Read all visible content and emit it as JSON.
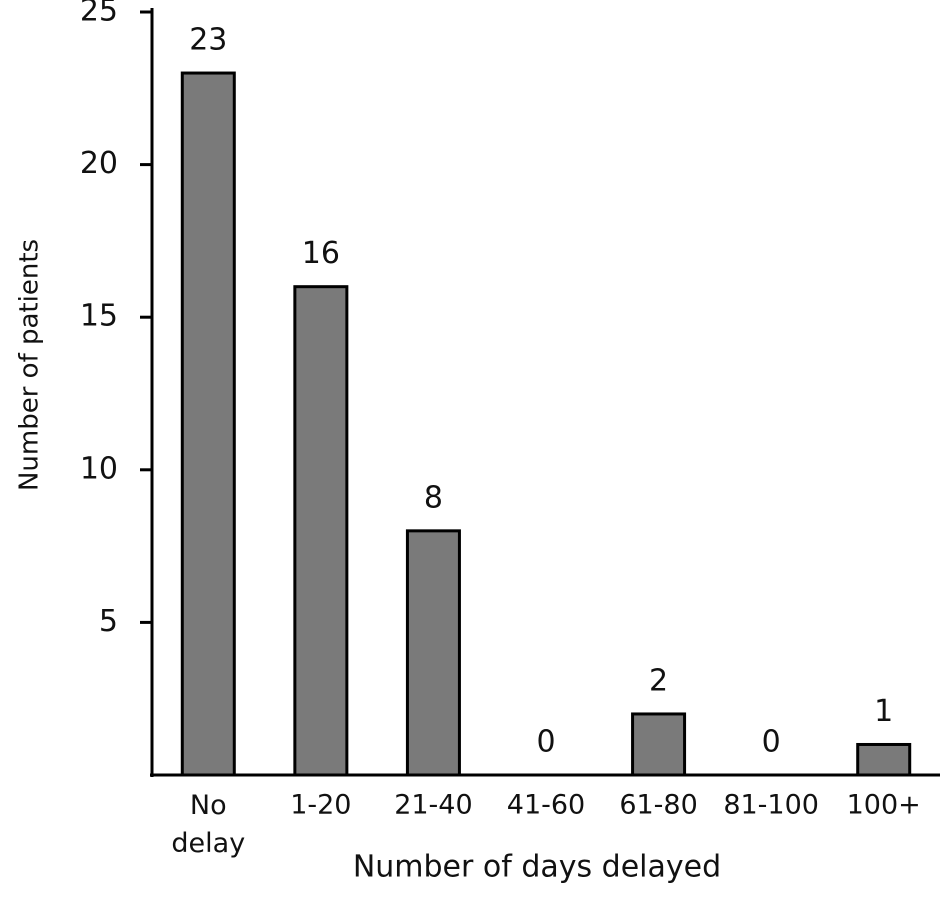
{
  "chart_data": {
    "type": "bar",
    "x_label": "Number of days delayed",
    "y_label": "Number of patients",
    "categories": [
      "No delay",
      "1-20",
      "21-40",
      "41-60",
      "61-80",
      "81-100",
      "100+"
    ],
    "values": [
      23,
      16,
      8,
      0,
      2,
      0,
      1
    ],
    "color": "#7a7a7a",
    "ylim": [
      0,
      25
    ],
    "yticks": [
      5,
      10,
      15,
      20,
      25
    ]
  }
}
